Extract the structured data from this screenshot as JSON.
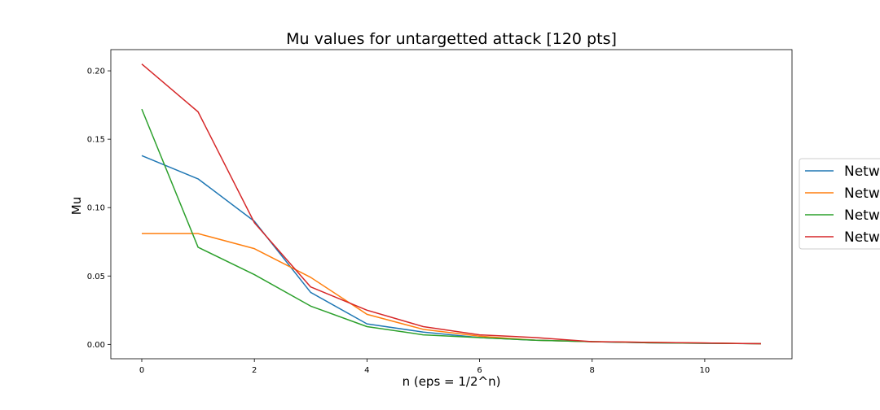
{
  "chart_data": {
    "type": "line",
    "title": "Mu values for untargetted attack [120 pts]",
    "xlabel": "n (eps = 1/2^n)",
    "ylabel": "Mu",
    "xlim": [
      -0.55,
      11.55
    ],
    "ylim": [
      -0.0105,
      0.2155
    ],
    "xticks": [
      0,
      2,
      4,
      6,
      8,
      10
    ],
    "yticks": [
      0.0,
      0.05,
      0.1,
      0.15,
      0.2
    ],
    "ytick_labels": [
      "0.00",
      "0.05",
      "0.10",
      "0.15",
      "0.20"
    ],
    "grid": false,
    "legend_placement": "center-right, outside plot (clipped)",
    "x": [
      0,
      1,
      2,
      3,
      4,
      5,
      6,
      7,
      8,
      9,
      10,
      11
    ],
    "series": [
      {
        "name": "Netw",
        "color": "#1f77b4",
        "values": [
          0.138,
          0.121,
          0.09,
          0.038,
          0.015,
          0.009,
          0.005,
          0.003,
          0.002,
          0.0012,
          0.0008,
          0.0005
        ]
      },
      {
        "name": "Netw",
        "color": "#ff7f0e",
        "values": [
          0.081,
          0.081,
          0.07,
          0.049,
          0.022,
          0.011,
          0.006,
          0.003,
          0.002,
          0.0015,
          0.001,
          0.0005
        ]
      },
      {
        "name": "Netw",
        "color": "#2ca02c",
        "values": [
          0.172,
          0.071,
          0.051,
          0.028,
          0.013,
          0.007,
          0.005,
          0.003,
          0.002,
          0.0012,
          0.0008,
          0.0005
        ]
      },
      {
        "name": "Netw",
        "color": "#d62728",
        "values": [
          0.205,
          0.17,
          0.089,
          0.042,
          0.025,
          0.013,
          0.007,
          0.005,
          0.002,
          0.0015,
          0.001,
          0.0005
        ]
      }
    ]
  }
}
